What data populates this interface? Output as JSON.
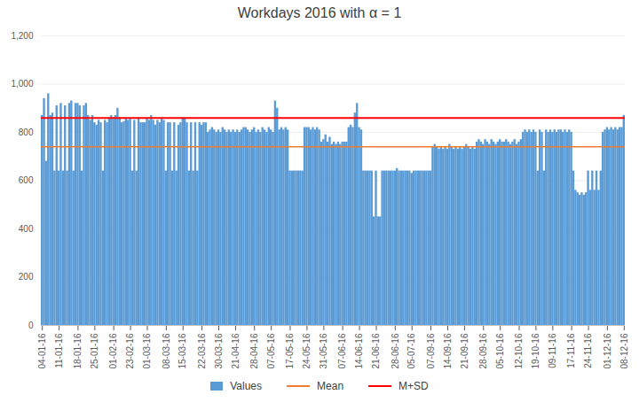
{
  "chart_data": {
    "type": "bar",
    "title": "Workdays 2016 with α = 1",
    "categories": [
      "04-01-16",
      null,
      null,
      null,
      null,
      null,
      null,
      null,
      "11-01-16",
      null,
      null,
      null,
      null,
      null,
      null,
      null,
      null,
      "18-01-16",
      null,
      null,
      null,
      null,
      null,
      null,
      null,
      "25-01-16",
      null,
      null,
      null,
      null,
      null,
      null,
      null,
      null,
      "01-02-16",
      null,
      null,
      null,
      null,
      null,
      null,
      null,
      "23-02-16",
      null,
      null,
      null,
      null,
      null,
      null,
      null,
      "01-03-16",
      null,
      null,
      null,
      null,
      null,
      null,
      null,
      null,
      "08-03-16",
      null,
      null,
      null,
      null,
      null,
      null,
      null,
      "15-03-16",
      null,
      null,
      null,
      null,
      null,
      null,
      null,
      null,
      "22-03-16",
      null,
      null,
      null,
      null,
      null,
      null,
      null,
      "30-03-16",
      null,
      null,
      null,
      null,
      null,
      null,
      null,
      "21-04-16",
      null,
      null,
      null,
      null,
      null,
      null,
      null,
      null,
      "28-04-16",
      null,
      null,
      null,
      null,
      null,
      null,
      null,
      "07-05-16",
      null,
      null,
      null,
      null,
      null,
      null,
      null,
      null,
      "17-05-16",
      null,
      null,
      null,
      null,
      null,
      null,
      null,
      "24-05-16",
      null,
      null,
      null,
      null,
      null,
      null,
      null,
      "31-05-16",
      null,
      null,
      null,
      null,
      null,
      null,
      null,
      null,
      "07-06-16",
      null,
      null,
      null,
      null,
      null,
      null,
      null,
      "14-06-16",
      null,
      null,
      null,
      null,
      null,
      null,
      null,
      "21-06-16",
      null,
      null,
      null,
      null,
      null,
      null,
      null,
      null,
      "28-06-16",
      null,
      null,
      null,
      null,
      null,
      null,
      null,
      "05-07-16",
      null,
      null,
      null,
      null,
      null,
      null,
      null,
      null,
      "07-09-16",
      null,
      null,
      null,
      null,
      null,
      null,
      null,
      "14-09-16",
      null,
      null,
      null,
      null,
      null,
      null,
      null,
      "21-09-16",
      null,
      null,
      null,
      null,
      null,
      null,
      null,
      null,
      "28-09-16",
      null,
      null,
      null,
      null,
      null,
      null,
      null,
      "05-10-16",
      null,
      null,
      null,
      null,
      null,
      null,
      null,
      null,
      "12-10-16",
      null,
      null,
      null,
      null,
      null,
      null,
      null,
      "19-10-16",
      null,
      null,
      null,
      null,
      null,
      null,
      null,
      "09-11-16",
      null,
      null,
      null,
      null,
      null,
      null,
      null,
      null,
      "17-11-16",
      null,
      null,
      null,
      null,
      null,
      null,
      null,
      "24-11-16",
      null,
      null,
      null,
      null,
      null,
      null,
      null,
      null,
      "01-12-16",
      null,
      null,
      null,
      null,
      null,
      null,
      null,
      "08-12-16"
    ],
    "series": [
      {
        "name": "Values",
        "type": "bar",
        "color": "#5B9BD5",
        "values": [
          870,
          940,
          680,
          960,
          870,
          880,
          640,
          910,
          640,
          920,
          640,
          910,
          640,
          920,
          930,
          640,
          920,
          920,
          910,
          640,
          910,
          920,
          870,
          850,
          870,
          840,
          830,
          850,
          840,
          640,
          850,
          840,
          860,
          870,
          860,
          870,
          900,
          860,
          840,
          845,
          860,
          850,
          860,
          640,
          850,
          640,
          860,
          840,
          840,
          840,
          860,
          850,
          870,
          850,
          830,
          850,
          840,
          860,
          850,
          640,
          840,
          840,
          640,
          840,
          640,
          830,
          840,
          860,
          860,
          840,
          640,
          840,
          640,
          840,
          640,
          840,
          830,
          840,
          840,
          800,
          810,
          820,
          810,
          800,
          810,
          800,
          820,
          810,
          800,
          810,
          800,
          810,
          800,
          810,
          800,
          810,
          820,
          820,
          810,
          800,
          810,
          820,
          800,
          810,
          800,
          820,
          810,
          800,
          820,
          810,
          800,
          930,
          900,
          810,
          820,
          810,
          820,
          810,
          640,
          640,
          640,
          640,
          640,
          640,
          640,
          820,
          820,
          820,
          810,
          820,
          810,
          820,
          810,
          760,
          770,
          790,
          760,
          780,
          750,
          760,
          750,
          760,
          750,
          760,
          760,
          760,
          820,
          830,
          820,
          880,
          920,
          820,
          810,
          640,
          640,
          640,
          640,
          640,
          450,
          640,
          450,
          450,
          640,
          640,
          640,
          640,
          640,
          640,
          640,
          650,
          640,
          640,
          640,
          640,
          640,
          640,
          630,
          640,
          640,
          640,
          640,
          640,
          640,
          640,
          640,
          640,
          740,
          750,
          740,
          730,
          740,
          730,
          740,
          730,
          750,
          740,
          730,
          740,
          730,
          740,
          730,
          740,
          750,
          740,
          730,
          740,
          730,
          760,
          770,
          760,
          750,
          770,
          760,
          750,
          770,
          760,
          750,
          760,
          770,
          760,
          760,
          770,
          760,
          750,
          760,
          770,
          750,
          760,
          770,
          800,
          810,
          800,
          810,
          800,
          810,
          800,
          640,
          810,
          800,
          640,
          810,
          800,
          810,
          800,
          810,
          800,
          810,
          810,
          800,
          810,
          800,
          810,
          800,
          640,
          560,
          550,
          540,
          550,
          540,
          550,
          640,
          560,
          640,
          560,
          640,
          560,
          640,
          800,
          810,
          820,
          810,
          820,
          810,
          820,
          810,
          820,
          820,
          870
        ]
      },
      {
        "name": "Mean",
        "type": "hline",
        "color": "#ED7D31",
        "value": 740
      },
      {
        "name": "M+SD",
        "type": "hline",
        "color": "#FF0000",
        "value": 860
      }
    ],
    "ylim": [
      0,
      1200
    ],
    "yticks": [
      0,
      200,
      400,
      600,
      800,
      {
        "value": 1000,
        "label": "1,000"
      },
      {
        "value": 1200,
        "label": "1,200"
      }
    ],
    "grid": true,
    "legend": "bottom"
  }
}
